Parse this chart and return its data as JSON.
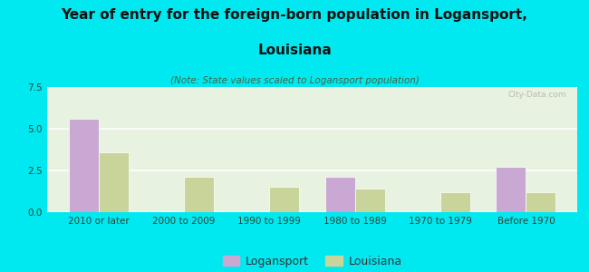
{
  "categories": [
    "2010 or later",
    "2000 to 2009",
    "1990 to 1999",
    "1980 to 1989",
    "1970 to 1979",
    "Before 1970"
  ],
  "logansport": [
    5.6,
    0,
    0,
    2.1,
    0,
    2.7
  ],
  "louisiana": [
    3.6,
    2.1,
    1.5,
    1.4,
    1.2,
    1.2
  ],
  "logansport_color": "#c9a8d4",
  "louisiana_color": "#c8d49a",
  "background_color": "#00e8f0",
  "plot_bg": "#e8f2e0",
  "title_line1": "Year of entry for the foreign-born population in Logansport,",
  "title_line2": "Louisiana",
  "subtitle": "(Note: State values scaled to Logansport population)",
  "ylim": [
    0,
    7.5
  ],
  "yticks": [
    0,
    2.5,
    5,
    7.5
  ],
  "bar_width": 0.35,
  "title_fontsize": 11,
  "subtitle_fontsize": 7.5,
  "tick_fontsize": 7.5,
  "legend_labels": [
    "Logansport",
    "Louisiana"
  ],
  "watermark": "City-Data.com"
}
